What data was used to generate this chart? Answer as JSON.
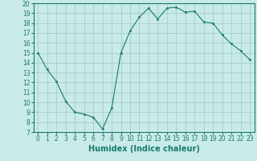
{
  "x": [
    0,
    1,
    2,
    3,
    4,
    5,
    6,
    7,
    8,
    9,
    10,
    11,
    12,
    13,
    14,
    15,
    16,
    17,
    18,
    19,
    20,
    21,
    22,
    23
  ],
  "y": [
    15,
    13.3,
    12.1,
    10.1,
    9.0,
    8.8,
    8.5,
    7.3,
    9.4,
    15.0,
    17.2,
    18.6,
    19.5,
    18.4,
    19.5,
    19.6,
    19.1,
    19.2,
    18.1,
    18.0,
    16.8,
    15.9,
    15.2,
    14.3
  ],
  "line_color": "#1a7a6e",
  "marker_color": "#1a7a6e",
  "bg_color": "#c8eae8",
  "grid_color": "#a0c8c4",
  "xlabel": "Humidex (Indice chaleur)",
  "ylim_min": 7,
  "ylim_max": 20,
  "xlim_min": -0.5,
  "xlim_max": 23.5,
  "yticks": [
    7,
    8,
    9,
    10,
    11,
    12,
    13,
    14,
    15,
    16,
    17,
    18,
    19,
    20
  ],
  "xticks": [
    0,
    1,
    2,
    3,
    4,
    5,
    6,
    7,
    8,
    9,
    10,
    11,
    12,
    13,
    14,
    15,
    16,
    17,
    18,
    19,
    20,
    21,
    22,
    23
  ],
  "tick_label_fontsize": 5.5,
  "xlabel_fontsize": 7.0,
  "xlabel_fontweight": "bold"
}
